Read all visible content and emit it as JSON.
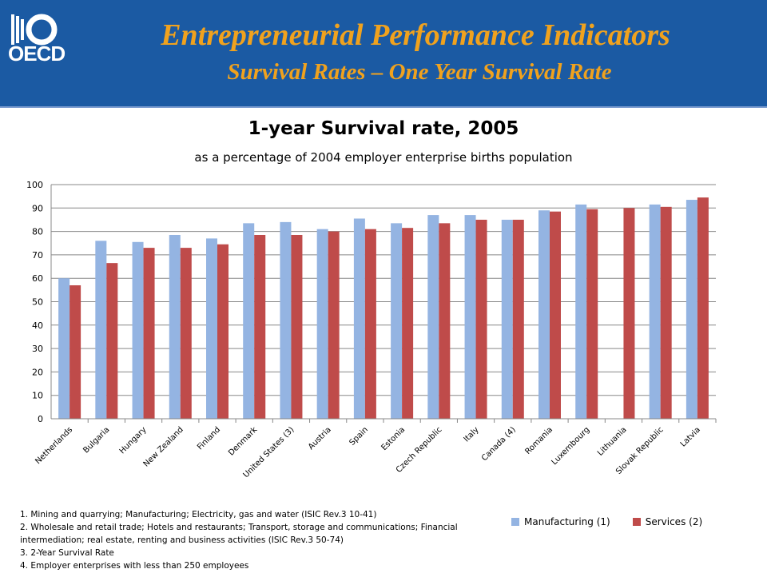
{
  "header": {
    "logo_text": "OECD",
    "title": "Entrepreneurial Performance Indicators",
    "subtitle": "Survival Rates – One Year Survival Rate"
  },
  "colors": {
    "header_bg": "#1b5aa3",
    "title_text": "#f0a21e",
    "manufacturing": "#94b4e2",
    "services": "#bf4b4a"
  },
  "footnotes": [
    "1. Mining and quarrying; Manufacturing; Electricity, gas and water (ISIC Rev.3 10-41)",
    "2. Wholesale and retail trade; Hotels and restaurants; Transport, storage and communications; Financial",
    "intermediation; real estate, renting and business activities (ISIC Rev.3 50-74)",
    "3. 2-Year Survival Rate",
    "4. Employer enterprises with less than 250 employees"
  ],
  "chart_data": {
    "type": "bar",
    "title": "1-year Survival rate, 2005",
    "subtitle": "as a percentage of 2004 employer enterprise births population",
    "xlabel": "",
    "ylabel": "",
    "ylim": [
      0,
      100
    ],
    "yticks": [
      0,
      10,
      20,
      30,
      40,
      50,
      60,
      70,
      80,
      90,
      100
    ],
    "grid": true,
    "legend_position": "bottom-right",
    "categories": [
      "Netherlands",
      "Bulgaria",
      "Hungary",
      "New Zealand",
      "Finland",
      "Denmark",
      "United States (3)",
      "Austria",
      "Spain",
      "Estonia",
      "Czech Republic",
      "Italy",
      "Canada (4)",
      "Romania",
      "Luxembourg",
      "Lithuania",
      "Slovak Republic",
      "Latvia"
    ],
    "series": [
      {
        "name": "Manufacturing (1)",
        "values": [
          60,
          76,
          75.5,
          78.5,
          77,
          83.5,
          84,
          81,
          85.5,
          83.5,
          87,
          87,
          85,
          89,
          91.5,
          null,
          91.5,
          93.5
        ]
      },
      {
        "name": "Services (2)",
        "values": [
          57,
          66.5,
          73,
          73,
          74.5,
          78.5,
          78.5,
          80,
          81,
          81.5,
          83.5,
          85,
          85,
          88.5,
          89.5,
          90,
          90.5,
          94.5
        ]
      }
    ]
  }
}
